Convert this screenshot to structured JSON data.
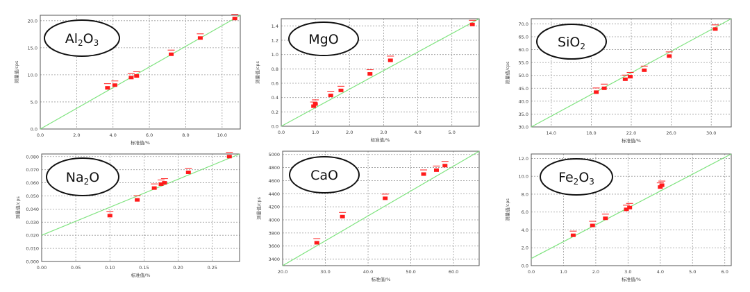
{
  "chart_data": [
    {
      "type": "scatter",
      "title": "Al2O3",
      "label": {
        "base": "Al",
        "sub1": "2",
        "mid": "O",
        "sub2": "3"
      },
      "xlabel": "标准值/%",
      "ylabel": "测量值/cps",
      "xlim": [
        0.0,
        11.0
      ],
      "ylim": [
        0.0,
        21.0
      ],
      "xticks": [
        0,
        2,
        4,
        6,
        8,
        10
      ],
      "xticklabels": [
        "0.0",
        "2.0",
        "4.0",
        "6.0",
        "8.0",
        "10.0"
      ],
      "yticks": [
        0,
        5,
        10,
        15,
        20
      ],
      "yticklabels": [
        "0.0",
        "5.0",
        "10.0",
        "15.0",
        "20.0"
      ],
      "grid": true,
      "fit_line": [
        [
          0.0,
          0.0
        ],
        [
          11.0,
          21.0
        ]
      ],
      "points": [
        [
          3.7,
          7.6
        ],
        [
          4.1,
          8.1
        ],
        [
          5.0,
          9.5
        ],
        [
          5.3,
          9.8
        ],
        [
          7.2,
          13.8
        ],
        [
          8.8,
          16.8
        ],
        [
          10.7,
          20.4
        ]
      ]
    },
    {
      "type": "scatter",
      "title": "MgO",
      "label": {
        "base": "MgO",
        "sub1": "",
        "mid": "",
        "sub2": ""
      },
      "xlabel": "标准值/%",
      "ylabel": "测量值/cps",
      "xlim": [
        0.0,
        5.8
      ],
      "ylim": [
        0.0,
        1.5
      ],
      "xticks": [
        0,
        1,
        2,
        3,
        4,
        5
      ],
      "xticklabels": [
        "0.0",
        "1.0",
        "2.0",
        "3.0",
        "4.0",
        "5.0"
      ],
      "yticks": [
        0.0,
        0.2,
        0.4,
        0.6,
        0.8,
        1.0,
        1.2,
        1.4
      ],
      "yticklabels": [
        "0.0",
        "0.2",
        "0.4",
        "0.6",
        "0.8",
        "1.0",
        "1.2",
        "1.4"
      ],
      "grid": true,
      "fit_line": [
        [
          0.0,
          0.0
        ],
        [
          5.8,
          1.5
        ]
      ],
      "points": [
        [
          0.95,
          0.28
        ],
        [
          1.0,
          0.31
        ],
        [
          1.45,
          0.43
        ],
        [
          1.75,
          0.5
        ],
        [
          2.6,
          0.73
        ],
        [
          3.2,
          0.92
        ],
        [
          5.6,
          1.42
        ]
      ]
    },
    {
      "type": "scatter",
      "title": "SiO2",
      "label": {
        "base": "SiO",
        "sub1": "2",
        "mid": "",
        "sub2": ""
      },
      "xlabel": "标准值/%",
      "ylabel": "测量值/cps",
      "xlim": [
        12.0,
        32.0
      ],
      "ylim": [
        30.0,
        72.0
      ],
      "xticks": [
        14,
        18,
        22,
        26,
        30
      ],
      "xticklabels": [
        "14.0",
        "18.0",
        "22.0",
        "26.0",
        "30.0"
      ],
      "yticks": [
        30,
        35,
        40,
        45,
        50,
        55,
        60,
        65,
        70
      ],
      "yticklabels": [
        "30.0",
        "35.0",
        "40.0",
        "45.0",
        "50.0",
        "55.0",
        "60.0",
        "65.0",
        "70.0"
      ],
      "grid": true,
      "fit_line": [
        [
          12.0,
          30.0
        ],
        [
          32.0,
          72.0
        ]
      ],
      "points": [
        [
          18.5,
          43.5
        ],
        [
          19.3,
          45.0
        ],
        [
          21.4,
          48.5
        ],
        [
          21.9,
          49.5
        ],
        [
          23.3,
          52.0
        ],
        [
          25.8,
          57.5
        ],
        [
          30.4,
          68.0
        ]
      ]
    },
    {
      "type": "scatter",
      "title": "Na2O",
      "label": {
        "base": "Na",
        "sub1": "2",
        "mid": "O",
        "sub2": ""
      },
      "xlabel": "标准值/%",
      "ylabel": "测量值/cps",
      "xlim": [
        0.0,
        0.29
      ],
      "ylim": [
        0.0,
        0.082
      ],
      "xticks": [
        0.0,
        0.05,
        0.1,
        0.15,
        0.2,
        0.25
      ],
      "xticklabels": [
        "0.00",
        "0.05",
        "0.10",
        "0.15",
        "0.20",
        "0.25"
      ],
      "yticks": [
        0.0,
        0.01,
        0.02,
        0.03,
        0.04,
        0.05,
        0.06,
        0.07,
        0.08
      ],
      "yticklabels": [
        "0.000",
        "0.010",
        "0.020",
        "0.030",
        "0.040",
        "0.050",
        "0.060",
        "0.070",
        "0.080"
      ],
      "grid": true,
      "fit_line": [
        [
          0.0,
          0.02
        ],
        [
          0.29,
          0.082
        ]
      ],
      "points": [
        [
          0.1,
          0.035
        ],
        [
          0.14,
          0.047
        ],
        [
          0.165,
          0.056
        ],
        [
          0.175,
          0.059
        ],
        [
          0.18,
          0.06
        ],
        [
          0.215,
          0.068
        ],
        [
          0.275,
          0.08
        ]
      ]
    },
    {
      "type": "scatter",
      "title": "CaO",
      "label": {
        "base": "CaO",
        "sub1": "",
        "mid": "",
        "sub2": ""
      },
      "xlabel": "标准值/%",
      "ylabel": "测量值/cps",
      "xlim": [
        20.0,
        66.0
      ],
      "ylim": [
        3300.0,
        5050.0
      ],
      "xticks": [
        20,
        30,
        40,
        50,
        60
      ],
      "xticklabels": [
        "20.0",
        "30.0",
        "40.0",
        "50.0",
        "60.0"
      ],
      "yticks": [
        3400,
        3600,
        3800,
        4000,
        4200,
        4400,
        4600,
        4800,
        5000
      ],
      "yticklabels": [
        "3400",
        "3600",
        "3800",
        "4000",
        "4200",
        "4400",
        "4600",
        "4800",
        "5000"
      ],
      "grid": true,
      "fit_line": [
        [
          20.0,
          3300.0
        ],
        [
          66.0,
          5050.0
        ]
      ],
      "points": [
        [
          28.0,
          3650.0
        ],
        [
          34.0,
          4050.0
        ],
        [
          44.0,
          4330.0
        ],
        [
          53.0,
          4700.0
        ],
        [
          56.0,
          4760.0
        ],
        [
          58.0,
          4830.0
        ]
      ]
    },
    {
      "type": "scatter",
      "title": "Fe2O3",
      "label": {
        "base": "Fe",
        "sub1": "2",
        "mid": "O",
        "sub2": "3"
      },
      "xlabel": "标准值/%",
      "ylabel": "测量值/cps",
      "xlim": [
        0.0,
        6.2
      ],
      "ylim": [
        0.0,
        12.5
      ],
      "xticks": [
        0,
        1,
        2,
        3,
        4,
        5,
        6
      ],
      "xticklabels": [
        "0.0",
        "1.0",
        "2.0",
        "3.0",
        "4.0",
        "5.0",
        "6.0"
      ],
      "yticks": [
        0,
        2,
        4,
        6,
        8,
        10,
        12
      ],
      "yticklabels": [
        "0.0",
        "2.0",
        "4.0",
        "6.0",
        "8.0",
        "10.0",
        "12.0"
      ],
      "grid": true,
      "fit_line": [
        [
          0.0,
          0.8
        ],
        [
          6.2,
          12.5
        ]
      ],
      "points": [
        [
          1.3,
          3.4
        ],
        [
          1.9,
          4.5
        ],
        [
          2.3,
          5.3
        ],
        [
          2.95,
          6.3
        ],
        [
          3.05,
          6.5
        ],
        [
          4.0,
          8.8
        ],
        [
          4.05,
          9.0
        ]
      ]
    }
  ],
  "colors": {
    "marker": "#ff1a1a",
    "fit_line": "#7ee37e",
    "grid": "#9a9a9a",
    "frame": "#555555",
    "text": "#444444"
  }
}
